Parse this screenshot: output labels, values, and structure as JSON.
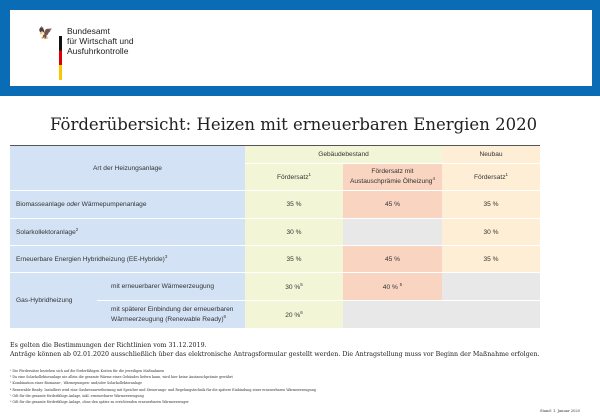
{
  "header": {
    "org_lines": [
      "Bundesamt",
      "für Wirtschaft und",
      "Ausfuhrkontrolle"
    ],
    "frame_color": "#0a6cb4"
  },
  "title": "Förderübersicht: Heizen mit erneuerbaren Energien 2020",
  "table": {
    "col_header_type": "Art der Heizungsanlage",
    "group_existing": "Gebäudebestand",
    "group_new": "Neubau",
    "col_rate": "Fördersatz",
    "col_rate_sup": "1",
    "col_oil_l1": "Fördersatz mit",
    "col_oil_l2": "Austauschprämie Ölheizung",
    "col_oil_sup": "4",
    "col_new_rate": "Fördersatz",
    "col_new_sup": "1",
    "rows": [
      {
        "label_a": "Biomasseanlage ",
        "label_em": "oder",
        "label_b": " Wärmepumpenanlage",
        "rate": "35 %",
        "oil": "45 %",
        "new": "35 %"
      },
      {
        "label": "Solarkollektoranlage",
        "sup": "2",
        "rate": "30 %",
        "oil": "",
        "new": "30 %"
      },
      {
        "label": "Erneuerbare Energien Hybridheizung (EE-Hybride)",
        "sup": "3",
        "rate": "35 %",
        "oil": "45 %",
        "new": "35 %"
      }
    ],
    "gas": {
      "label": "Gas-Hybridheizung",
      "sub1": "mit erneuerbarer Wärmeerzeugung",
      "sub1_rate": "30 %",
      "sub1_rate_sup": "5",
      "sub1_oil": "40 %",
      "sub1_oil_sup": "5",
      "sub2_l1": "mit späterer Einbindung der erneuerbaren",
      "sub2_l2": "Wärmeerzeugung (Renewable Ready)",
      "sub2_sup": "6",
      "sub2_rate": "20 %",
      "sub2_rate_sup": "6"
    },
    "colors": {
      "type": "#d3e2f4",
      "existing": "#f3f6d6",
      "oil": "#f8d4c1",
      "new": "#fdeed5",
      "none": "#e8e8e8"
    }
  },
  "notes": [
    "Es gelten die Bestimmungen der Richtlinien vom 31.12.2019.",
    "Anträge können ab 02.01.2020 ausschließlich über das elektronische Antragsformular gestellt werden. Die Antragstellung muss vor Beginn der Maßnahme erfolgen."
  ],
  "footnotes": [
    "¹ Die Fördersätze beziehen sich auf die förderfähigen Kosten für die jeweiligen Maßnahmen",
    "² Da eine Solarkollektoranlage nie allein die gesamte Wärme eines Gebäudes liefern kann, wird hier keine Austauschprämie gewährt",
    "³ Kombination einer Biomasse-, Wärmepumpen- und/oder Solarkollektoranlage",
    "⁴ Renewable Ready: Installiert wird eine Gasbrennwertheizung mit Speicher und Steuerungs- und Regelungstechnik für die spätere Einbindung einer erneuerbaren Wärmeerzeugung",
    "⁵ Gilt für die gesamte förderfähige Anlage, inkl. erneuerbarer Wärmeerzeugung",
    "⁶ Gilt für die gesamte förderfähige Anlage, ohne den später zu errichtenden erneuerbaren Wärmeerzeuger"
  ],
  "date": "Stand: 1. Januar 2020"
}
